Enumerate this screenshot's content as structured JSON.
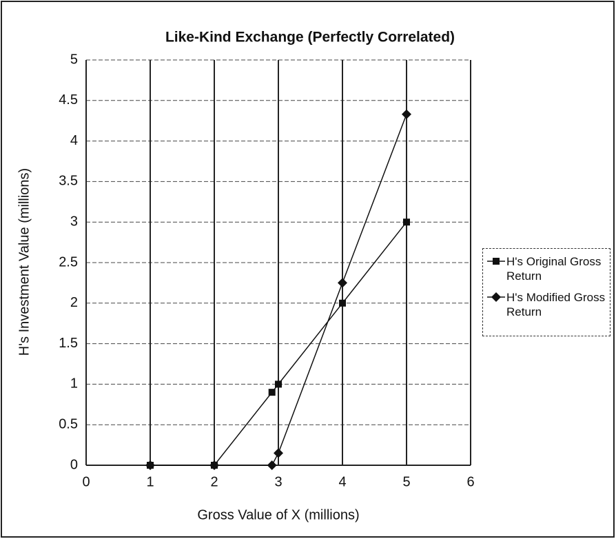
{
  "chart_data": {
    "type": "line",
    "title": "Like-Kind Exchange (Perfectly Correlated)",
    "x_label": "Gross Value of X (millions)",
    "y_label": "H's Investment Value (millions)",
    "xlim": [
      0,
      6
    ],
    "xticks": [
      0,
      1,
      2,
      3,
      4,
      5,
      6
    ],
    "ylim": [
      0,
      5
    ],
    "yticks": [
      0,
      0.5,
      1,
      1.5,
      2,
      2.5,
      3,
      3.5,
      4,
      4.5,
      5
    ],
    "grid": true,
    "legend": "right",
    "series": [
      {
        "name": "H's Original Gross Return",
        "color": "#111111",
        "marker": "square",
        "x": [
          1,
          2,
          2.9,
          3,
          4,
          5
        ],
        "values": [
          0,
          0,
          0.9,
          1,
          2,
          3
        ]
      },
      {
        "name": "H's Modified Gross Return",
        "color": "#111111",
        "marker": "diamond",
        "x": [
          1,
          2,
          2.9,
          3,
          4,
          5
        ],
        "values": [
          0,
          0,
          0,
          0.15,
          2.25,
          4.33
        ]
      }
    ]
  }
}
